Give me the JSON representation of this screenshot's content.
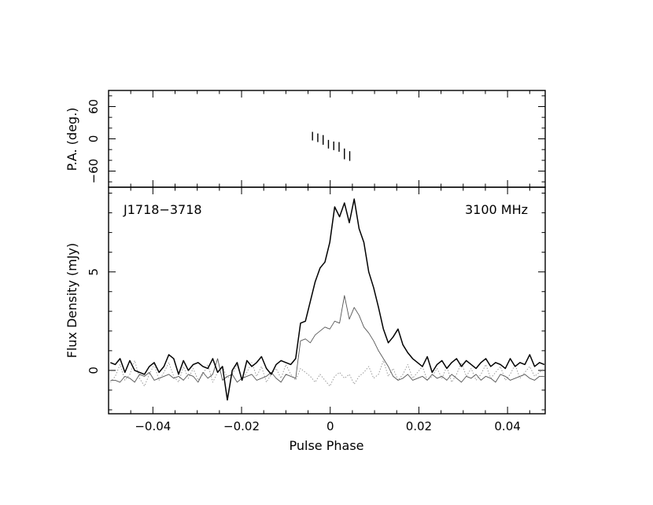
{
  "chart_data": [
    {
      "panel": "polarization-angle",
      "type": "scatter",
      "ylabel": "P.A. (deg.)",
      "ylim": [
        -90,
        90
      ],
      "yticks": [
        -60,
        0,
        60
      ],
      "ytick_labels": [
        "−60",
        "0",
        "60"
      ],
      "xlim": [
        -0.05,
        0.0485
      ],
      "points": [
        {
          "x": -0.004,
          "y": 5,
          "err": 8
        },
        {
          "x": -0.0028,
          "y": 2,
          "err": 8
        },
        {
          "x": -0.0016,
          "y": -2,
          "err": 9
        },
        {
          "x": -0.0004,
          "y": -10,
          "err": 8
        },
        {
          "x": 0.0008,
          "y": -13,
          "err": 8
        },
        {
          "x": 0.002,
          "y": -15,
          "err": 9
        },
        {
          "x": 0.0032,
          "y": -28,
          "err": 10
        },
        {
          "x": 0.0044,
          "y": -32,
          "err": 9
        }
      ]
    },
    {
      "panel": "flux-density",
      "type": "line",
      "xlabel": "Pulse Phase",
      "ylabel": "Flux Density (mJy)",
      "xlim": [
        -0.05,
        0.0485
      ],
      "ylim": [
        -2.2,
        9.3
      ],
      "xticks": [
        -0.04,
        -0.02,
        0,
        0.02,
        0.04
      ],
      "xtick_labels": [
        "−0.04",
        "−0.02",
        "0",
        "0.02",
        "0.04"
      ],
      "yticks": [
        0,
        5
      ],
      "ytick_labels": [
        "0",
        "5"
      ],
      "annotations": {
        "source": "J1718−3718",
        "frequency": "3100 MHz"
      },
      "x_start": -0.0496,
      "x_step": 0.0011,
      "series": [
        {
          "style": "total",
          "color": "#000000",
          "values": [
            0.4,
            0.3,
            0.6,
            -0.1,
            0.5,
            0.0,
            -0.1,
            -0.2,
            0.2,
            0.4,
            -0.1,
            0.2,
            0.8,
            0.6,
            -0.2,
            0.5,
            0.0,
            0.3,
            0.4,
            0.2,
            0.1,
            0.6,
            -0.1,
            0.2,
            -1.5,
            0.0,
            0.4,
            -0.5,
            0.5,
            0.2,
            0.4,
            0.7,
            0.1,
            -0.2,
            0.3,
            0.5,
            0.4,
            0.3,
            0.6,
            2.4,
            2.5,
            3.5,
            4.5,
            5.2,
            5.5,
            6.5,
            8.3,
            7.8,
            8.5,
            7.5,
            8.7,
            7.2,
            6.5,
            5.0,
            4.2,
            3.2,
            2.1,
            1.4,
            1.7,
            2.1,
            1.3,
            0.9,
            0.6,
            0.4,
            0.2,
            0.7,
            -0.1,
            0.3,
            0.5,
            0.1,
            0.4,
            0.6,
            0.2,
            0.5,
            0.3,
            0.1,
            0.4,
            0.6,
            0.2,
            0.4,
            0.3,
            0.1,
            0.6,
            0.2,
            0.4,
            0.3,
            0.8,
            0.2,
            0.4,
            0.3
          ]
        },
        {
          "style": "linear",
          "color": "#555555",
          "values": [
            -0.5,
            -0.5,
            -0.6,
            -0.3,
            -0.4,
            -0.6,
            -0.2,
            -0.3,
            -0.1,
            -0.5,
            -0.4,
            -0.3,
            -0.2,
            -0.4,
            -0.3,
            -0.5,
            -0.2,
            -0.3,
            -0.6,
            -0.1,
            -0.4,
            -0.2,
            0.6,
            -0.5,
            -0.3,
            -0.2,
            -0.6,
            -0.4,
            -0.3,
            -0.2,
            -0.5,
            -0.4,
            -0.3,
            -0.1,
            -0.4,
            -0.6,
            -0.2,
            -0.3,
            -0.4,
            1.5,
            1.6,
            1.4,
            1.8,
            2.0,
            2.2,
            2.1,
            2.5,
            2.4,
            3.8,
            2.6,
            3.2,
            2.8,
            2.2,
            1.9,
            1.5,
            1.0,
            0.6,
            0.2,
            -0.3,
            -0.5,
            -0.4,
            -0.2,
            -0.5,
            -0.4,
            -0.3,
            -0.5,
            -0.2,
            -0.4,
            -0.3,
            -0.5,
            -0.2,
            -0.4,
            -0.6,
            -0.3,
            -0.4,
            -0.2,
            -0.5,
            -0.3,
            -0.4,
            -0.6,
            -0.2,
            -0.3,
            -0.5,
            -0.4,
            -0.3,
            -0.2,
            -0.4,
            -0.5,
            -0.3,
            -0.3
          ]
        },
        {
          "style": "circular",
          "color": "#999999",
          "values": [
            -0.6,
            -0.3,
            0.3,
            -0.5,
            -0.2,
            0.5,
            -0.4,
            -0.8,
            -0.2,
            0.3,
            -0.5,
            -0.1,
            0.4,
            -0.3,
            -0.6,
            0.2,
            -0.4,
            0.1,
            -0.5,
            -0.2,
            0.3,
            -0.6,
            -0.1,
            0.2,
            -0.4,
            -0.2,
            0.3,
            -0.5,
            -0.1,
            0.4,
            -0.3,
            0.2,
            -0.6,
            -0.2,
            0.1,
            -0.4,
            0.3,
            -0.2,
            -0.5,
            0.1,
            -0.1,
            -0.3,
            -0.6,
            -0.2,
            -0.5,
            -0.8,
            -0.3,
            -0.1,
            -0.4,
            -0.2,
            -0.7,
            -0.3,
            -0.1,
            0.2,
            -0.4,
            -0.2,
            0.5,
            -0.3,
            0.1,
            -0.5,
            -0.2,
            0.3,
            -0.4,
            -0.1,
            0.2,
            -0.5,
            -0.3,
            0.1,
            -0.4,
            0.2,
            -0.6,
            -0.2,
            0.4,
            -0.3,
            0.1,
            -0.5,
            -0.2,
            0.3,
            -0.4,
            -0.1,
            0.2,
            -0.5,
            -0.2,
            0.3,
            -0.4,
            -0.1,
            0.2,
            -0.3,
            -0.1,
            0.1
          ]
        }
      ]
    }
  ]
}
